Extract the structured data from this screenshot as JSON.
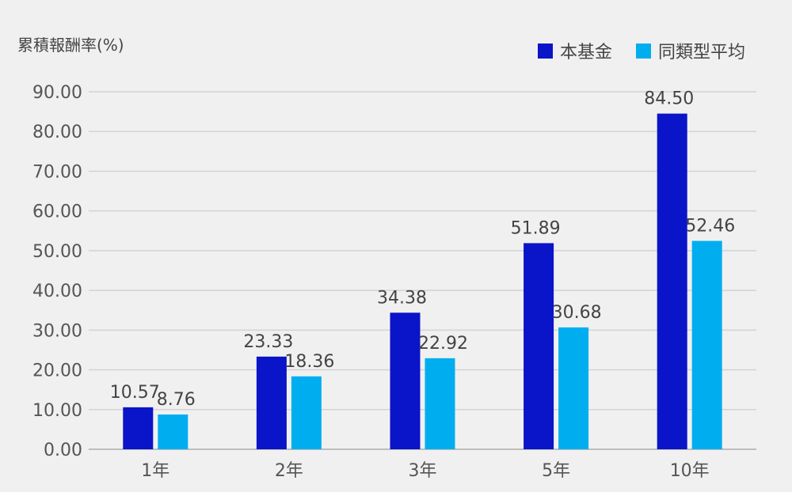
{
  "chart_data": {
    "type": "bar",
    "ylabel": "累積報酬率(%)",
    "categories": [
      "1年",
      "2年",
      "3年",
      "5年",
      "10年"
    ],
    "series": [
      {
        "name": "本基金",
        "color": "#0a14c8",
        "values": [
          10.57,
          23.33,
          34.38,
          51.89,
          84.5
        ],
        "labels": [
          "10.57",
          "23.33",
          "34.38",
          "51.89",
          "84.50"
        ]
      },
      {
        "name": "同類型平均",
        "color": "#00aeef",
        "values": [
          8.76,
          18.36,
          22.92,
          30.68,
          52.46
        ],
        "labels": [
          "8.76",
          "18.36",
          "22.92",
          "30.68",
          "52.46"
        ]
      }
    ],
    "ylim": [
      0,
      90
    ],
    "yticks": [
      "0.00",
      "10.00",
      "20.00",
      "30.00",
      "40.00",
      "50.00",
      "60.00",
      "70.00",
      "80.00",
      "90.00"
    ],
    "grid": true,
    "legend_position": "top-right"
  }
}
